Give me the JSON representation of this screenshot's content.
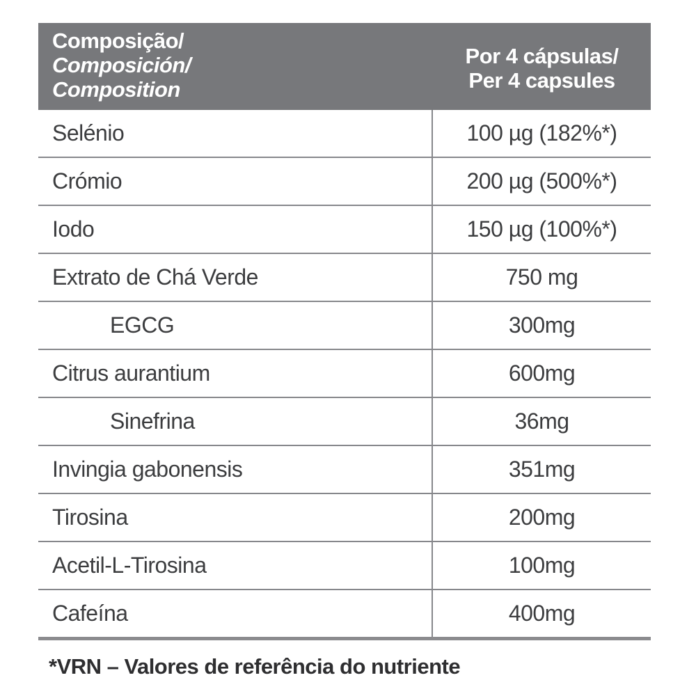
{
  "table": {
    "header": {
      "col1_line1_pt": "Composição/",
      "col1_line2_es": "Composición/",
      "col1_line3_en": "Composition",
      "col2_line1_pt": "Por 4 cápsulas/",
      "col2_line2_en": "Per 4 capsules"
    },
    "rows": [
      {
        "label": "Selénio",
        "value": "100 µg (182%*)",
        "indent": false
      },
      {
        "label": "Crómio",
        "value": "200 µg (500%*)",
        "indent": false
      },
      {
        "label": "Iodo",
        "value": "150 µg (100%*)",
        "indent": false
      },
      {
        "label": "Extrato de Chá Verde",
        "value": "750 mg",
        "indent": false
      },
      {
        "label": "EGCG",
        "value": "300mg",
        "indent": true
      },
      {
        "label": "Citrus aurantium",
        "value": "600mg",
        "indent": false
      },
      {
        "label": "Sinefrina",
        "value": "36mg",
        "indent": true
      },
      {
        "label": "Invingia gabonensis",
        "value": "351mg",
        "indent": false
      },
      {
        "label": "Tirosina",
        "value": "200mg",
        "indent": false
      },
      {
        "label": "Acetil-L-Tirosina",
        "value": "100mg",
        "indent": false
      },
      {
        "label": "Cafeína",
        "value": "400mg",
        "indent": false
      }
    ],
    "footnote": "*VRN – Valores de referência do nutriente"
  },
  "colors": {
    "header_bg": "#77787B",
    "header_text": "#FFFFFF",
    "grid_line": "#86878B",
    "bottom_border": "#8B8B8E",
    "body_text": "#3C3D3F",
    "footnote_text": "#2E2E30"
  }
}
